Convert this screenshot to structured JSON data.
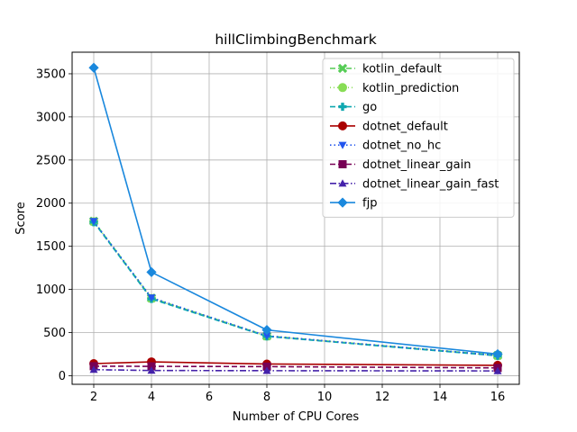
{
  "chart_data": {
    "type": "line",
    "title": "hillClimbingBenchmark",
    "xlabel": "Number of CPU Cores",
    "ylabel": "Score",
    "x": [
      2,
      4,
      8,
      16
    ],
    "xlim": [
      1.25,
      16.75
    ],
    "ylim": [
      -100,
      3750
    ],
    "xticks": [
      2,
      4,
      6,
      8,
      10,
      12,
      14,
      16
    ],
    "yticks": [
      0,
      500,
      1000,
      1500,
      2000,
      2500,
      3000,
      3500
    ],
    "grid": true,
    "legend_position": "top-right",
    "series": [
      {
        "name": "kotlin_default",
        "values": [
          1790,
          900,
          460,
          235
        ],
        "color": "#55cc55",
        "dash": "6,3",
        "marker": "x"
      },
      {
        "name": "kotlin_prediction",
        "values": [
          1785,
          895,
          458,
          233
        ],
        "color": "#88dd55",
        "dash": "1,3",
        "marker": "circle"
      },
      {
        "name": "go",
        "values": [
          1780,
          890,
          455,
          230
        ],
        "color": "#10a8b0",
        "dash": "6,3",
        "marker": "plus"
      },
      {
        "name": "dotnet_default",
        "values": [
          140,
          160,
          135,
          120
        ],
        "color": "#aa0000",
        "dash": "",
        "marker": "circle"
      },
      {
        "name": "dotnet_no_hc",
        "values": [
          1790,
          905,
          462,
          236
        ],
        "color": "#2255ee",
        "dash": "1.5,3",
        "marker": "triangle-down"
      },
      {
        "name": "dotnet_linear_gain",
        "values": [
          110,
          108,
          105,
          90
        ],
        "color": "#770055",
        "dash": "6,3",
        "marker": "square"
      },
      {
        "name": "dotnet_linear_gain_fast",
        "values": [
          70,
          60,
          58,
          55
        ],
        "color": "#4422aa",
        "dash": "7,2.5,1.5,2.5",
        "marker": "triangle-up"
      },
      {
        "name": "fjp",
        "values": [
          3570,
          1200,
          530,
          250
        ],
        "color": "#1a88dd",
        "dash": "",
        "marker": "diamond"
      }
    ]
  }
}
